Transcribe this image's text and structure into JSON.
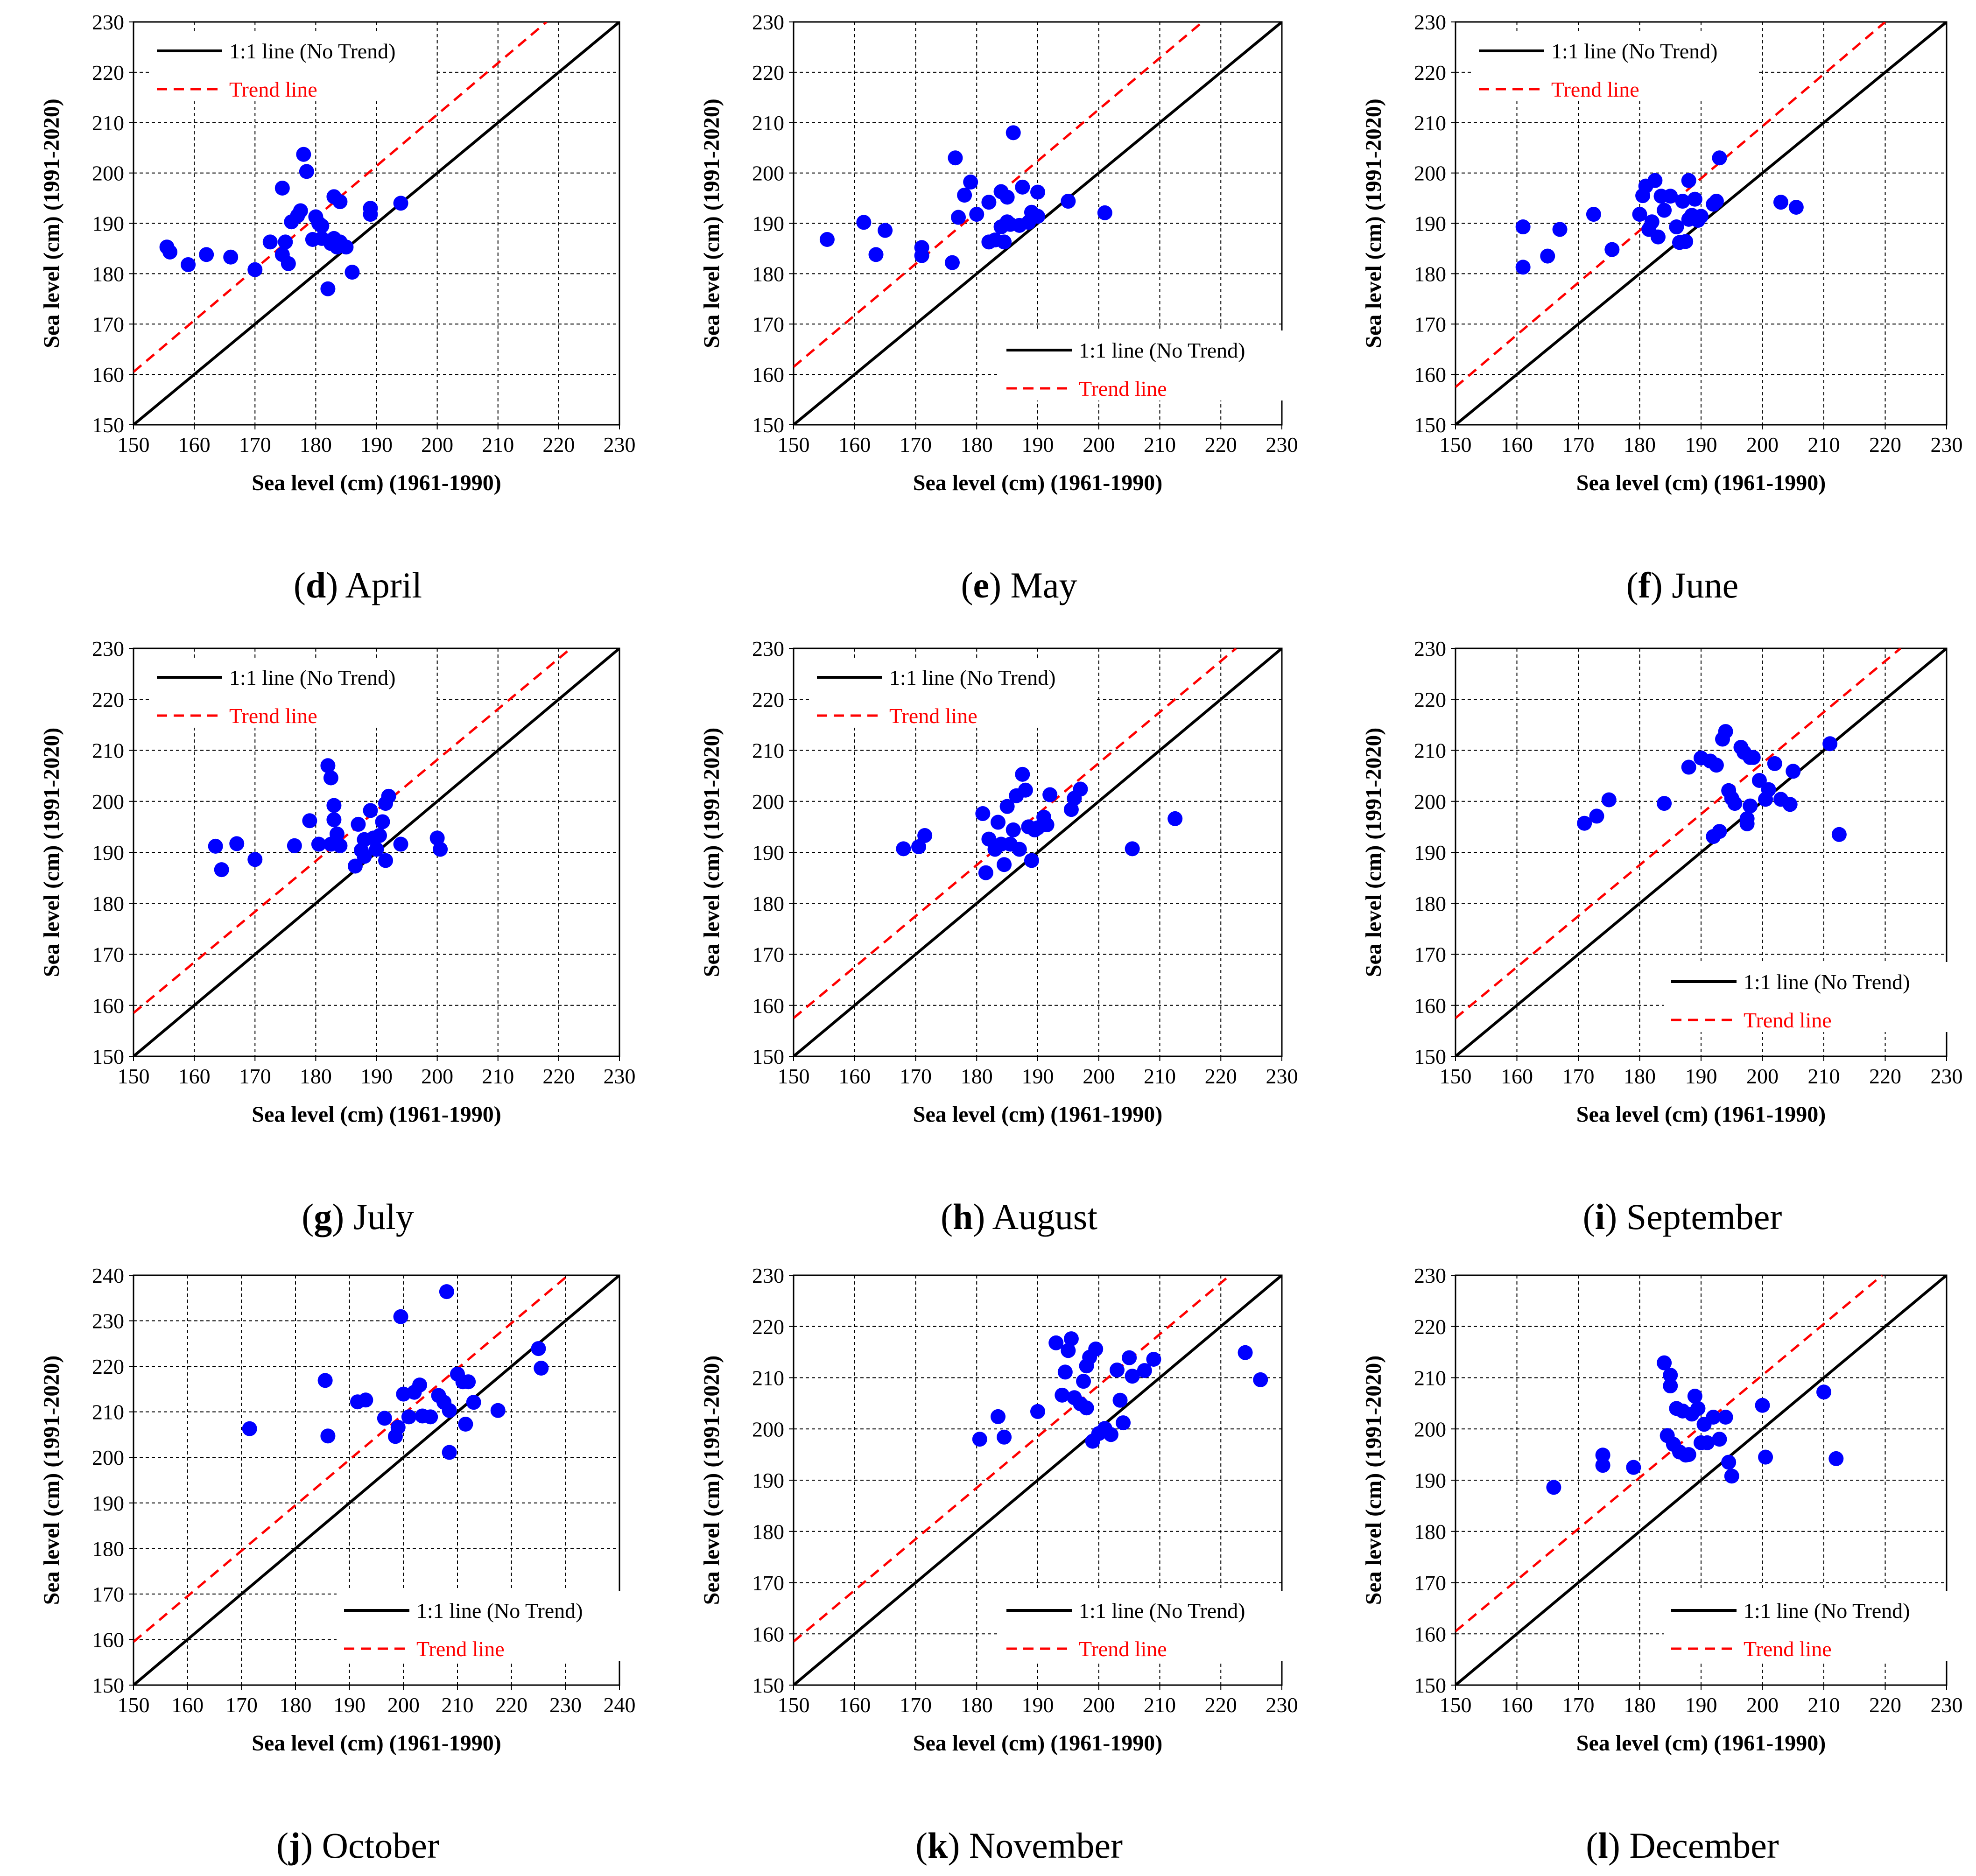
{
  "legend": {
    "line11": "1:1 line (No Trend)",
    "trend": "Trend line"
  },
  "colors": {
    "points": "#0000ff",
    "line11": "#000000",
    "trend": "#ff0000",
    "grid": "#000000"
  },
  "chart_data": [
    {
      "type": "scatter",
      "letter": "d",
      "caption": "April",
      "xlabel": "Sea level (cm) (1961-1990)",
      "ylabel": "Sea level (cm) (1991-2020)",
      "xlim": [
        150,
        230
      ],
      "ylim": [
        150,
        230
      ],
      "ticks": [
        150,
        160,
        170,
        180,
        190,
        200,
        210,
        220,
        230
      ],
      "legend_position": "top-left",
      "trend_line": [
        [
          150,
          160.5
        ],
        [
          218,
          230
        ]
      ],
      "series": [
        {
          "name": "points",
          "x": [
            155.5,
            156,
            159,
            162,
            166,
            170,
            172.5,
            174.5,
            174.5,
            175,
            175.5,
            176,
            177,
            177.5,
            178,
            178.5,
            179.5,
            180,
            180.5,
            181,
            181,
            182,
            182.5,
            183,
            183,
            183.5,
            184,
            184,
            185,
            186,
            189,
            189,
            194
          ],
          "y": [
            185.3,
            184.3,
            181.8,
            183.8,
            183.3,
            180.8,
            186.3,
            197,
            183.8,
            186.3,
            182,
            190.3,
            191.5,
            192.5,
            203.7,
            200.3,
            186.8,
            191.3,
            190,
            189.5,
            187,
            177,
            186,
            195.3,
            187,
            185.3,
            186.3,
            194.3,
            185.3,
            180.3,
            193,
            191.8,
            194
          ]
        }
      ]
    },
    {
      "type": "scatter",
      "letter": "e",
      "caption": "May",
      "xlabel": "Sea level (cm) (1961-1990)",
      "ylabel": "Sea level (cm) (1991-2020)",
      "xlim": [
        150,
        230
      ],
      "ylim": [
        150,
        230
      ],
      "ticks": [
        150,
        160,
        170,
        180,
        190,
        200,
        210,
        220,
        230
      ],
      "legend_position": "bottom-right",
      "trend_line": [
        [
          150,
          161.5
        ],
        [
          217,
          230
        ]
      ],
      "series": [
        {
          "name": "points",
          "x": [
            155.5,
            161.5,
            163.5,
            165,
            171,
            171,
            176,
            176.5,
            177,
            178,
            179,
            180,
            182,
            182,
            183,
            184,
            184,
            184.5,
            185,
            185,
            185.5,
            186,
            187,
            187.5,
            188.5,
            189,
            190,
            190,
            195,
            201
          ],
          "y": [
            186.8,
            190.2,
            183.8,
            188.6,
            185.2,
            183.6,
            182.2,
            203,
            191.2,
            195.6,
            198.2,
            191.8,
            194.2,
            186.3,
            186.7,
            196.3,
            189.3,
            186.3,
            190.3,
            195.2,
            189.8,
            208,
            189.6,
            197.2,
            190.2,
            192.2,
            196.2,
            191.4,
            194.4,
            192.1
          ]
        }
      ]
    },
    {
      "type": "scatter",
      "letter": "f",
      "caption": "June",
      "xlabel": "Sea level (cm) (1961-1990)",
      "ylabel": "Sea level (cm) (1991-2020)",
      "xlim": [
        150,
        230
      ],
      "ylim": [
        150,
        230
      ],
      "ticks": [
        150,
        160,
        170,
        180,
        190,
        200,
        210,
        220,
        230
      ],
      "legend_position": "top-left",
      "trend_line": [
        [
          150,
          157.5
        ],
        [
          220,
          230
        ]
      ],
      "series": [
        {
          "name": "points",
          "x": [
            161,
            161,
            165,
            167,
            172.5,
            175.5,
            180,
            180.5,
            181,
            181.5,
            182,
            182.5,
            183,
            183.5,
            184,
            185,
            186,
            186.5,
            187,
            187.5,
            188,
            188,
            188.5,
            189,
            189.5,
            190,
            192,
            192.5,
            193,
            203,
            205.5
          ],
          "y": [
            189.3,
            181.3,
            183.5,
            188.8,
            191.8,
            184.8,
            191.8,
            195.5,
            197.4,
            188.8,
            190.3,
            198.5,
            187.3,
            195.4,
            192.6,
            195.4,
            189.3,
            186.2,
            194.4,
            186.4,
            198.5,
            190.8,
            191.6,
            194.8,
            190.6,
            191.4,
            193.8,
            194.4,
            203,
            194.2,
            193.2
          ]
        }
      ]
    },
    {
      "type": "scatter",
      "letter": "g",
      "caption": "July",
      "xlabel": "Sea level (cm) (1961-1990)",
      "ylabel": "Sea level (cm) (1991-2020)",
      "xlim": [
        150,
        230
      ],
      "ylim": [
        150,
        230
      ],
      "ticks": [
        150,
        160,
        170,
        180,
        190,
        200,
        210,
        220,
        230
      ],
      "legend_position": "top-left",
      "trend_line": [
        [
          150,
          158.5
        ],
        [
          222,
          230
        ]
      ],
      "series": [
        {
          "name": "points",
          "x": [
            163.5,
            164.5,
            167,
            170,
            176.5,
            179,
            180.5,
            182,
            182.5,
            182.5,
            183,
            183,
            183.5,
            184,
            186.5,
            187,
            187.5,
            188,
            188,
            189,
            189.5,
            190,
            190.5,
            191,
            191.5,
            191.5,
            192,
            194,
            200,
            200.5
          ],
          "y": [
            191.2,
            186.6,
            191.7,
            188.6,
            191.3,
            196.2,
            191.6,
            207,
            204.6,
            191.6,
            199.2,
            196.4,
            193.6,
            191.3,
            187.3,
            195.5,
            190.4,
            192.5,
            189.2,
            198.2,
            192.8,
            190.6,
            193.3,
            196,
            188.4,
            199.6,
            201,
            191.6,
            192.8,
            190.6
          ]
        }
      ]
    },
    {
      "type": "scatter",
      "letter": "h",
      "caption": "August",
      "xlabel": "Sea level (cm) (1961-1990)",
      "ylabel": "Sea level (cm) (1991-2020)",
      "xlim": [
        150,
        230
      ],
      "ylim": [
        150,
        230
      ],
      "ticks": [
        150,
        160,
        170,
        180,
        190,
        200,
        210,
        220,
        230
      ],
      "legend_position": "top-left",
      "trend_line": [
        [
          150,
          157.5
        ],
        [
          222.5,
          230
        ]
      ],
      "series": [
        {
          "name": "points",
          "x": [
            168,
            170.5,
            171.5,
            181,
            181.5,
            182,
            183,
            183.5,
            184,
            184.5,
            185,
            185.5,
            186,
            186.5,
            187,
            187.5,
            188,
            188.5,
            189,
            189.5,
            190,
            191,
            191.5,
            192,
            195.5,
            196,
            197,
            205.5,
            212.5
          ],
          "y": [
            190.7,
            191.1,
            193.3,
            197.6,
            186,
            192.6,
            190.6,
            195.9,
            191.6,
            187.6,
            199,
            191.6,
            194.4,
            201.1,
            190.6,
            205.3,
            202.2,
            195,
            188.4,
            194.4,
            194.8,
            196.9,
            195.4,
            201.3,
            198.4,
            200.6,
            202.4,
            190.7,
            196.6
          ]
        }
      ]
    },
    {
      "type": "scatter",
      "letter": "i",
      "caption": "September",
      "xlabel": "Sea level (cm) (1961-1990)",
      "ylabel": "Sea level (cm) (1991-2020)",
      "xlim": [
        150,
        230
      ],
      "ylim": [
        150,
        230
      ],
      "ticks": [
        150,
        160,
        170,
        180,
        190,
        200,
        210,
        220,
        230
      ],
      "legend_position": "bottom-right",
      "trend_line": [
        [
          150,
          157.5
        ],
        [
          222.5,
          230
        ]
      ],
      "series": [
        {
          "name": "points",
          "x": [
            171,
            173,
            175,
            184,
            188,
            190,
            191.5,
            192,
            192.5,
            193,
            193.5,
            194,
            194.5,
            195,
            195.5,
            196.5,
            197,
            197.5,
            197.5,
            198,
            198,
            198.5,
            199.5,
            200.5,
            201,
            202,
            203,
            204.5,
            205,
            211,
            212.5
          ],
          "y": [
            195.7,
            197.1,
            200.3,
            199.6,
            206.7,
            208.5,
            207.9,
            193.1,
            207.1,
            194.1,
            212.2,
            213.7,
            202.1,
            200.6,
            199.6,
            210.6,
            209.6,
            196.6,
            195.6,
            208.6,
            199.1,
            208.6,
            204.1,
            200.4,
            202.3,
            207.4,
            200.4,
            199.4,
            205.9,
            211.3,
            193.5
          ]
        }
      ]
    },
    {
      "type": "scatter",
      "letter": "j",
      "caption": "October",
      "xlabel": "Sea level (cm) (1961-1990)",
      "ylabel": "Sea level (cm) (1991-2020)",
      "xlim": [
        150,
        240
      ],
      "ylim": [
        150,
        240
      ],
      "ticks": [
        150,
        160,
        170,
        180,
        190,
        200,
        210,
        220,
        230,
        240
      ],
      "legend_position": "bottom-right",
      "trend_line": [
        [
          150,
          159.5
        ],
        [
          230.5,
          240
        ]
      ],
      "series": [
        {
          "name": "points",
          "x": [
            171.5,
            185.5,
            186,
            191.5,
            193,
            196.5,
            198.5,
            199,
            199.5,
            200,
            201,
            202,
            203,
            203.5,
            205,
            206.5,
            207.5,
            208,
            208.5,
            208.5,
            210,
            211,
            211.5,
            212,
            213,
            217.5,
            225,
            225.5
          ],
          "y": [
            206.3,
            216.9,
            204.7,
            212.2,
            212.6,
            208.6,
            204.6,
            206.6,
            230.9,
            213.9,
            208.9,
            214.3,
            215.9,
            209.1,
            208.9,
            213.6,
            212.1,
            236.4,
            210.3,
            201.1,
            218.3,
            216.6,
            207.3,
            216.6,
            212.1,
            210.3,
            223.9,
            219.6
          ]
        }
      ]
    },
    {
      "type": "scatter",
      "letter": "k",
      "caption": "November",
      "xlabel": "Sea level (cm) (1961-1990)",
      "ylabel": "Sea level (cm) (1991-2020)",
      "xlim": [
        150,
        230
      ],
      "ylim": [
        150,
        230
      ],
      "ticks": [
        150,
        160,
        170,
        180,
        190,
        200,
        210,
        220,
        230
      ],
      "legend_position": "bottom-right",
      "trend_line": [
        [
          150,
          158.5
        ],
        [
          221.5,
          230
        ]
      ],
      "series": [
        {
          "name": "points",
          "x": [
            180.5,
            183.5,
            184.5,
            190,
            193,
            194,
            194.5,
            195,
            195.5,
            196,
            197,
            197.5,
            198,
            198,
            198.5,
            199,
            199.5,
            200,
            201,
            202,
            203,
            203.5,
            204,
            205,
            205.5,
            207.5,
            209,
            224,
            226.5
          ],
          "y": [
            198,
            202.4,
            198.4,
            203.4,
            216.8,
            206.6,
            211.1,
            215.3,
            217.6,
            206.1,
            204.9,
            209.3,
            212.3,
            204.1,
            214,
            197.6,
            215.6,
            199.1,
            200.1,
            198.9,
            211.5,
            205.6,
            201.2,
            213.9,
            210.3,
            211.4,
            213.6,
            214.9,
            209.6
          ]
        }
      ]
    },
    {
      "type": "scatter",
      "letter": "l",
      "caption": "December",
      "xlabel": "Sea level (cm) (1961-1990)",
      "ylabel": "Sea level (cm) (1991-2020)",
      "xlim": [
        150,
        230
      ],
      "ylim": [
        150,
        230
      ],
      "ticks": [
        150,
        160,
        170,
        180,
        190,
        200,
        210,
        220,
        230
      ],
      "legend_position": "bottom-right",
      "trend_line": [
        [
          150,
          160.5
        ],
        [
          219.5,
          230
        ]
      ],
      "series": [
        {
          "name": "points",
          "x": [
            166,
            174,
            174,
            179,
            184,
            184.5,
            185,
            185,
            185.5,
            186,
            186.5,
            187,
            187.5,
            188,
            188.5,
            189,
            189.5,
            190,
            190.5,
            191,
            192,
            193,
            194,
            194.5,
            195,
            200,
            200.5,
            210,
            212
          ],
          "y": [
            188.6,
            194.9,
            192.9,
            192.5,
            212.9,
            198.7,
            208.4,
            210.5,
            197,
            204,
            195.5,
            203.5,
            194.9,
            195,
            202.9,
            206.4,
            204,
            197.3,
            200.9,
            197.3,
            202.3,
            198,
            202.3,
            193.5,
            190.8,
            204.6,
            194.5,
            207.2,
            194.2
          ]
        }
      ]
    }
  ]
}
